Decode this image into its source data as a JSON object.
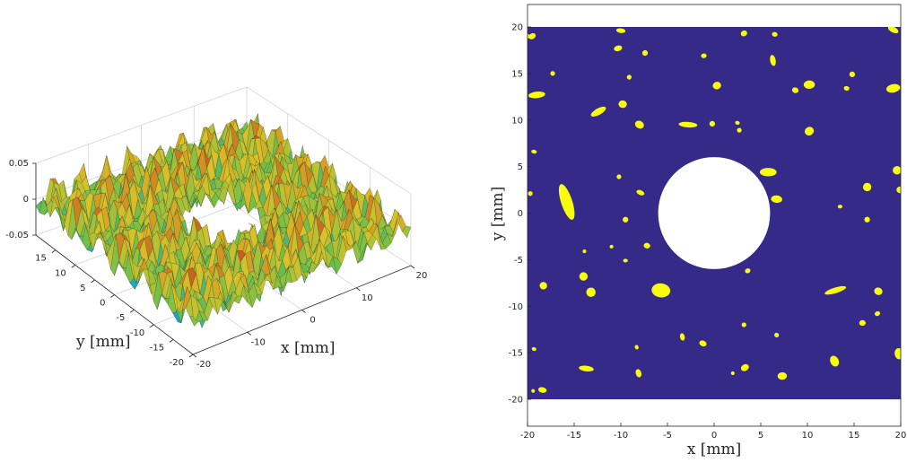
{
  "chart_data": [
    {
      "type": "surface",
      "xlabel": "x [mm]",
      "ylabel": "y [mm]",
      "xlim": [
        -20,
        20
      ],
      "ylim": [
        -20,
        20
      ],
      "zlim": [
        -0.05,
        0.05
      ],
      "xticks": [
        "-20",
        "-10",
        "0",
        "10",
        "20"
      ],
      "yticks": [
        "-20",
        "-15",
        "-10",
        "-5",
        "0",
        "5",
        "10",
        "15"
      ],
      "zticks": [
        "-0.05",
        "0",
        "0.05"
      ],
      "hole": {
        "cx": 0,
        "cy": 0,
        "r": 6
      },
      "colormap": [
        "#1a2f9e",
        "#1aa6c9",
        "#6bbf4a",
        "#d9c22a",
        "#c2501c",
        "#8a1010"
      ],
      "grid": true
    },
    {
      "type": "heatmap",
      "xlabel": "x [mm]",
      "ylabel": "y [mm]",
      "xlim": [
        -20,
        20
      ],
      "ylim": [
        -20,
        20
      ],
      "xticks": [
        "-20",
        "-15",
        "-10",
        "-5",
        "0",
        "5",
        "10",
        "15",
        "20"
      ],
      "yticks": [
        "-20",
        "-15",
        "-10",
        "-5",
        "0",
        "5",
        "10",
        "15",
        "20"
      ],
      "hole": {
        "cx": 0,
        "cy": 0,
        "r": 6
      },
      "background_color": "#352a87",
      "blob_color": "#f9fb0e",
      "blobs": [
        {
          "x": -19.5,
          "y": 19.0,
          "w": 0.8,
          "h": 0.6
        },
        {
          "x": -10.0,
          "y": 19.6,
          "w": 1.0,
          "h": 0.5
        },
        {
          "x": -10.3,
          "y": 17.7,
          "w": 0.9,
          "h": 0.6
        },
        {
          "x": -7.4,
          "y": 17.2,
          "w": 0.6,
          "h": 0.6
        },
        {
          "x": -1.1,
          "y": 16.9,
          "w": 0.6,
          "h": 0.5
        },
        {
          "x": 3.2,
          "y": 19.3,
          "w": 0.7,
          "h": 0.6
        },
        {
          "x": 6.5,
          "y": 19.2,
          "w": 0.6,
          "h": 0.5
        },
        {
          "x": 6.3,
          "y": 16.4,
          "w": 0.6,
          "h": 1.2
        },
        {
          "x": 19.2,
          "y": 19.7,
          "w": 1.2,
          "h": 0.6
        },
        {
          "x": -20.0,
          "y": 19.0,
          "w": 0.5,
          "h": 0.5
        },
        {
          "x": -17.3,
          "y": 15.0,
          "w": 0.5,
          "h": 0.5
        },
        {
          "x": -9.1,
          "y": 14.6,
          "w": 0.5,
          "h": 0.5
        },
        {
          "x": -19.0,
          "y": 12.7,
          "w": 1.8,
          "h": 0.7
        },
        {
          "x": -12.4,
          "y": 10.9,
          "w": 1.8,
          "h": 0.7
        },
        {
          "x": -9.8,
          "y": 11.7,
          "w": 0.9,
          "h": 0.8
        },
        {
          "x": 0.3,
          "y": 13.7,
          "w": 0.9,
          "h": 0.8
        },
        {
          "x": 8.7,
          "y": 13.2,
          "w": 0.7,
          "h": 0.6
        },
        {
          "x": 10.2,
          "y": 13.8,
          "w": 1.2,
          "h": 0.9
        },
        {
          "x": 14.8,
          "y": 14.9,
          "w": 0.6,
          "h": 0.6
        },
        {
          "x": 14.2,
          "y": 13.4,
          "w": 0.6,
          "h": 0.5
        },
        {
          "x": 19.2,
          "y": 13.4,
          "w": 1.5,
          "h": 0.9
        },
        {
          "x": -8.0,
          "y": 9.5,
          "w": 1.0,
          "h": 0.8
        },
        {
          "x": -2.8,
          "y": 9.5,
          "w": 2.0,
          "h": 0.6
        },
        {
          "x": -0.2,
          "y": 9.6,
          "w": 0.6,
          "h": 0.6
        },
        {
          "x": 2.5,
          "y": 9.7,
          "w": 0.5,
          "h": 0.4
        },
        {
          "x": 2.7,
          "y": 8.9,
          "w": 0.5,
          "h": 0.5
        },
        {
          "x": 10.2,
          "y": 8.8,
          "w": 1.0,
          "h": 0.9
        },
        {
          "x": -19.3,
          "y": 6.6,
          "w": 0.6,
          "h": 0.4
        },
        {
          "x": -10.2,
          "y": 3.9,
          "w": 0.5,
          "h": 0.5
        },
        {
          "x": -7.9,
          "y": 2.2,
          "w": 0.9,
          "h": 0.5
        },
        {
          "x": 5.8,
          "y": 4.4,
          "w": 1.8,
          "h": 0.9
        },
        {
          "x": 19.6,
          "y": 4.6,
          "w": 0.9,
          "h": 0.9
        },
        {
          "x": 16.4,
          "y": 2.8,
          "w": 0.9,
          "h": 0.9
        },
        {
          "x": 19.9,
          "y": 2.5,
          "w": 0.7,
          "h": 0.7
        },
        {
          "x": -19.7,
          "y": 2.1,
          "w": 0.5,
          "h": 0.5
        },
        {
          "x": 6.7,
          "y": 1.5,
          "w": 1.2,
          "h": 0.8
        },
        {
          "x": -15.8,
          "y": 1.2,
          "w": 1.2,
          "h": 4.0
        },
        {
          "x": -9.5,
          "y": -0.7,
          "w": 0.6,
          "h": 0.6
        },
        {
          "x": 13.5,
          "y": 0.7,
          "w": 0.5,
          "h": 0.4
        },
        {
          "x": 16.4,
          "y": -0.7,
          "w": 0.6,
          "h": 0.6
        },
        {
          "x": -7.2,
          "y": -3.5,
          "w": 0.7,
          "h": 0.6
        },
        {
          "x": -11.0,
          "y": -3.6,
          "w": 0.4,
          "h": 0.4
        },
        {
          "x": -13.9,
          "y": -4.1,
          "w": 0.4,
          "h": 0.4
        },
        {
          "x": -9.5,
          "y": -5.1,
          "w": 0.5,
          "h": 0.4
        },
        {
          "x": 3.6,
          "y": -6.2,
          "w": 0.6,
          "h": 0.5
        },
        {
          "x": -14.0,
          "y": -6.8,
          "w": 0.9,
          "h": 0.9
        },
        {
          "x": -18.3,
          "y": -7.8,
          "w": 0.8,
          "h": 0.8
        },
        {
          "x": -13.2,
          "y": -8.5,
          "w": 1.0,
          "h": 1.0
        },
        {
          "x": -5.7,
          "y": -8.3,
          "w": 2.0,
          "h": 1.5
        },
        {
          "x": 13.0,
          "y": -8.3,
          "w": 2.4,
          "h": 0.6
        },
        {
          "x": 17.6,
          "y": -8.4,
          "w": 0.9,
          "h": 0.8
        },
        {
          "x": 15.9,
          "y": -11.8,
          "w": 0.7,
          "h": 0.6
        },
        {
          "x": 17.5,
          "y": -10.8,
          "w": 0.6,
          "h": 0.5
        },
        {
          "x": 3.2,
          "y": -12.0,
          "w": 0.5,
          "h": 0.5
        },
        {
          "x": -3.4,
          "y": -13.3,
          "w": 0.5,
          "h": 0.8
        },
        {
          "x": -1.2,
          "y": -14.0,
          "w": 0.8,
          "h": 0.6
        },
        {
          "x": 6.7,
          "y": -13.1,
          "w": 0.5,
          "h": 0.5
        },
        {
          "x": -8.3,
          "y": -14.4,
          "w": 0.4,
          "h": 0.5
        },
        {
          "x": -19.3,
          "y": -14.6,
          "w": 0.5,
          "h": 0.4
        },
        {
          "x": 19.8,
          "y": -15.1,
          "w": 0.9,
          "h": 1.2
        },
        {
          "x": 3.3,
          "y": -16.6,
          "w": 0.9,
          "h": 0.7
        },
        {
          "x": -13.7,
          "y": -16.7,
          "w": 1.6,
          "h": 0.6
        },
        {
          "x": -8.1,
          "y": -17.2,
          "w": 0.6,
          "h": 0.9
        },
        {
          "x": 2.0,
          "y": -17.2,
          "w": 0.4,
          "h": 0.4
        },
        {
          "x": 7.3,
          "y": -17.5,
          "w": 1.0,
          "h": 0.8
        },
        {
          "x": 12.9,
          "y": -15.9,
          "w": 0.9,
          "h": 1.2
        },
        {
          "x": -18.4,
          "y": -19.0,
          "w": 0.9,
          "h": 0.6
        },
        {
          "x": -19.4,
          "y": -19.1,
          "w": 0.4,
          "h": 0.4
        }
      ]
    }
  ]
}
